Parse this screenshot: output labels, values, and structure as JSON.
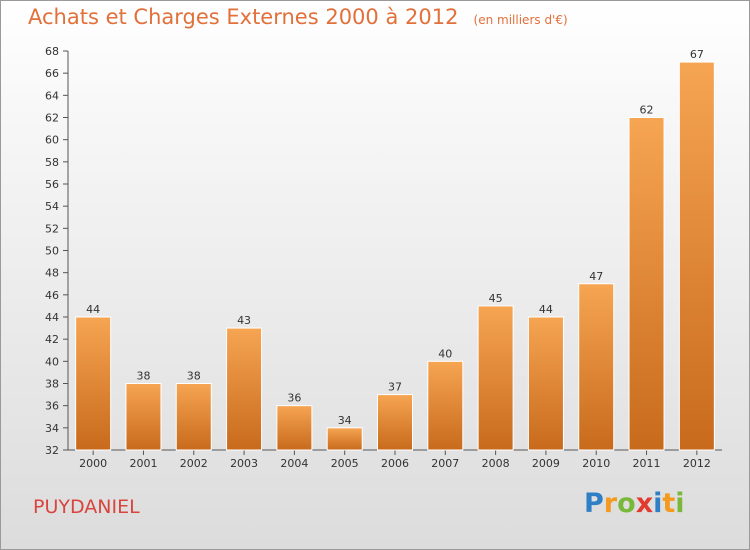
{
  "header": {
    "title": "Achats et Charges Externes 2000 à 2012",
    "unit": "(en milliers d'€)"
  },
  "footer": {
    "place": "PUYDANIEL",
    "logo_letters": [
      "P",
      "r",
      "o",
      "x",
      "i",
      "t",
      "i"
    ],
    "logo_colors": [
      "#2f7fc6",
      "#f39a20",
      "#7ab83c",
      "#e23a2f",
      "#2f7fc6",
      "#f39a20",
      "#7ab83c"
    ]
  },
  "chart_data": {
    "type": "bar",
    "title": "Achats et Charges Externes 2000 à 2012",
    "subtitle": "(en milliers d'€)",
    "categories": [
      "2000",
      "2001",
      "2002",
      "2003",
      "2004",
      "2005",
      "2006",
      "2007",
      "2008",
      "2009",
      "2010",
      "2011",
      "2012"
    ],
    "values": [
      44,
      38,
      38,
      43,
      36,
      34,
      37,
      40,
      45,
      44,
      47,
      62,
      67
    ],
    "ylim": [
      32,
      68
    ],
    "yticks": [
      32,
      34,
      36,
      38,
      40,
      42,
      44,
      46,
      48,
      50,
      52,
      54,
      56,
      58,
      60,
      62,
      64,
      66,
      68
    ],
    "xlabel": "",
    "ylabel": "",
    "grid": false,
    "bar_color_top": "#f6a552",
    "bar_color_bottom": "#c86a1c"
  }
}
